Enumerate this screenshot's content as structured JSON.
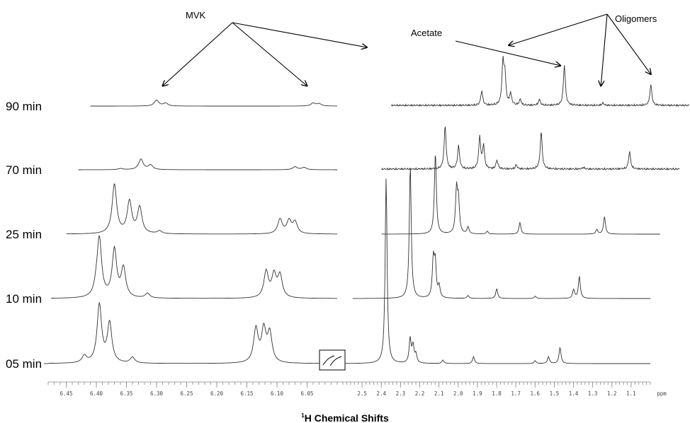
{
  "chart_data": {
    "type": "line",
    "xlabel_sup": "1",
    "xlabel": "H Chemical Shifts",
    "x_unit": "ppm",
    "x_reversed": true,
    "break_symbol": "axis-break",
    "regions": [
      {
        "name": "",
        "xlim": [
          6.48,
          6.0
        ],
        "ticks": [
          "6.45",
          "6.40",
          "6.35",
          "6.30",
          "6.25",
          "6.20",
          "6.15",
          "6.10",
          "6.05"
        ]
      },
      {
        "name": "",
        "xlim": [
          2.6,
          1.0
        ],
        "ticks": [
          "2.5",
          "2.4",
          "2.3",
          "2.2",
          "2.1",
          "2.0",
          "1.9",
          "1.8",
          "1.7",
          "1.6",
          "1.5",
          "1.4",
          "1.3",
          "1.2",
          "1.1"
        ]
      }
    ],
    "series": [
      {
        "name": "05 min",
        "left": {
          "start": 6.48,
          "end": 6.0,
          "peaks": [
            [
              6.42,
              0.12
            ],
            [
              6.395,
              1.0
            ],
            [
              6.378,
              0.68
            ],
            [
              6.34,
              0.1
            ],
            [
              6.135,
              0.58
            ],
            [
              6.122,
              0.55
            ],
            [
              6.112,
              0.5
            ]
          ]
        },
        "right": {
          "start": 2.6,
          "end": 1.0,
          "peaks": [
            [
              2.375,
              3.2
            ],
            [
              2.25,
              0.42
            ],
            [
              2.235,
              0.3
            ],
            [
              2.22,
              0.15
            ],
            [
              2.08,
              0.06
            ],
            [
              1.92,
              0.12
            ],
            [
              1.6,
              0.05
            ],
            [
              1.53,
              0.12
            ],
            [
              1.47,
              0.28
            ]
          ]
        }
      },
      {
        "name": "10 min",
        "left": {
          "start": 6.475,
          "end": 6.0,
          "peaks": [
            [
              6.4,
              0.12
            ],
            [
              6.395,
              1.0
            ],
            [
              6.37,
              0.82
            ],
            [
              6.355,
              0.5
            ],
            [
              6.315,
              0.08
            ],
            [
              6.118,
              0.45
            ],
            [
              6.105,
              0.38
            ],
            [
              6.095,
              0.38
            ]
          ]
        },
        "right": {
          "start": 2.6,
          "end": 1.05,
          "peaks": [
            [
              2.3,
              2.3
            ],
            [
              2.18,
              0.65
            ],
            [
              2.17,
              0.58
            ],
            [
              2.15,
              0.2
            ],
            [
              2.0,
              0.05
            ],
            [
              1.85,
              0.17
            ],
            [
              1.65,
              0.04
            ],
            [
              1.45,
              0.15
            ],
            [
              1.42,
              0.38
            ]
          ]
        }
      },
      {
        "name": "25 min",
        "left": {
          "start": 6.45,
          "end": 6.0,
          "peaks": [
            [
              6.37,
              0.85
            ],
            [
              6.345,
              0.55
            ],
            [
              6.328,
              0.45
            ],
            [
              6.295,
              0.05
            ],
            [
              6.095,
              0.25
            ],
            [
              6.08,
              0.22
            ],
            [
              6.07,
              0.2
            ]
          ]
        },
        "right": {
          "start": 2.5,
          "end": 1.05,
          "peaks": [
            [
              2.22,
              1.4
            ],
            [
              2.11,
              0.75
            ],
            [
              2.1,
              0.55
            ],
            [
              2.05,
              0.12
            ],
            [
              1.95,
              0.05
            ],
            [
              1.78,
              0.2
            ],
            [
              1.38,
              0.08
            ],
            [
              1.34,
              0.3
            ]
          ]
        }
      },
      {
        "name": "70 min",
        "left": {
          "start": 6.43,
          "end": 6.0,
          "peaks": [
            [
              6.36,
              0.02
            ],
            [
              6.326,
              0.18
            ],
            [
              6.31,
              0.08
            ],
            [
              6.07,
              0.05
            ],
            [
              6.055,
              0.04
            ]
          ]
        },
        "right": {
          "start": 2.55,
          "end": 1.0,
          "peaks": [
            [
              2.22,
              0.75
            ],
            [
              2.15,
              0.4
            ],
            [
              2.04,
              0.55
            ],
            [
              2.02,
              0.4
            ],
            [
              1.95,
              0.15
            ],
            [
              1.85,
              0.07
            ],
            [
              1.72,
              0.65
            ],
            [
              1.5,
              0.03
            ],
            [
              1.26,
              0.3
            ]
          ]
        }
      },
      {
        "name": "90 min",
        "left": {
          "start": 6.41,
          "end": 6.0,
          "peaks": [
            [
              6.3,
              0.1
            ],
            [
              6.285,
              0.05
            ],
            [
              6.04,
              0.05
            ],
            [
              6.03,
              0.04
            ]
          ]
        },
        "right": {
          "start": 2.55,
          "end": 1.0,
          "peaks": [
            [
              2.08,
              0.25
            ],
            [
              1.97,
              0.7
            ],
            [
              1.96,
              0.5
            ],
            [
              1.93,
              0.2
            ],
            [
              1.88,
              0.1
            ],
            [
              1.78,
              0.1
            ],
            [
              1.65,
              0.7
            ],
            [
              1.45,
              0.04
            ],
            [
              1.2,
              0.36
            ]
          ]
        }
      }
    ],
    "annotations": [
      {
        "text": "MVK",
        "targets": [
          [
            6.29,
            4,
            0.25
          ],
          [
            6.05,
            4,
            0.25
          ],
          [
            2.38,
            4,
            2.2
          ]
        ]
      },
      {
        "text": "Acetate",
        "targets": [
          [
            1.67,
            4,
            0.6
          ]
        ]
      },
      {
        "text": "Oligomers",
        "targets": [
          [
            1.94,
            4,
            0.95
          ],
          [
            1.46,
            4,
            0.25
          ],
          [
            1.2,
            4,
            0.45
          ]
        ]
      }
    ]
  }
}
